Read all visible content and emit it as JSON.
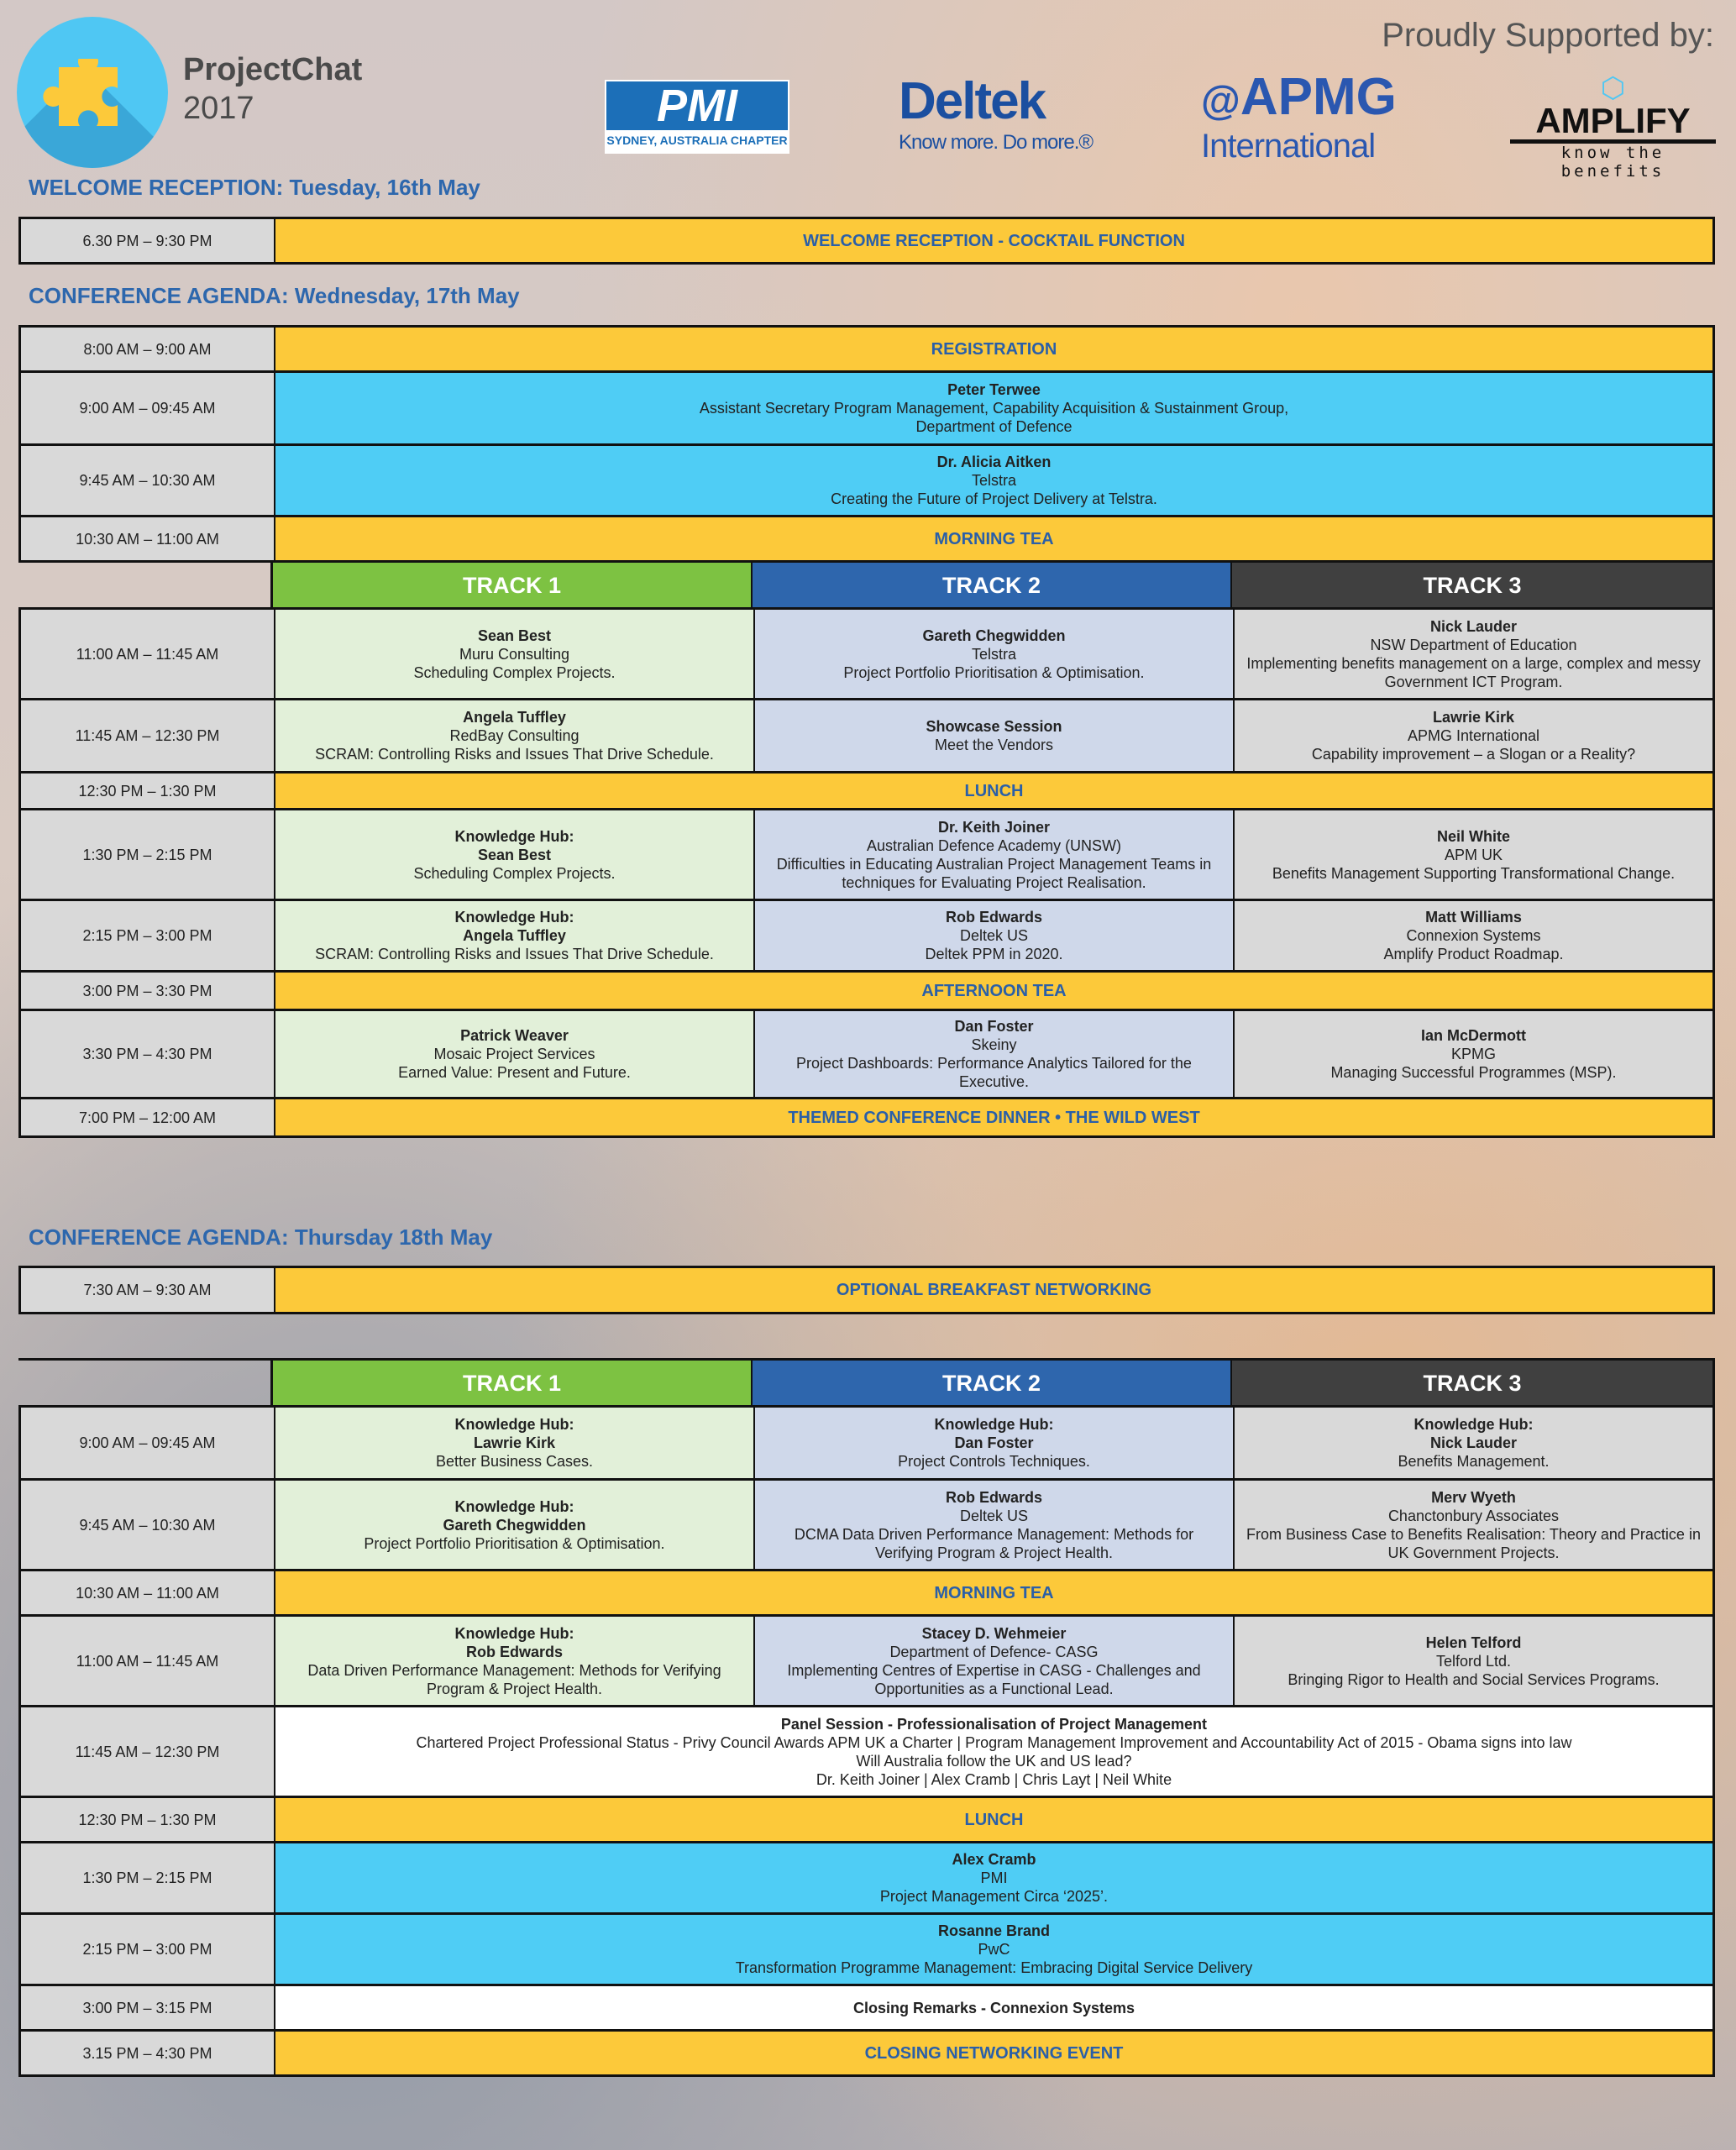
{
  "header": {
    "brand_line1": "ProjectChat",
    "brand_line2": "2017",
    "supported_by": "Proudly Supported by:",
    "sponsors": {
      "pmi": "PMI",
      "pmi_sub": "SYDNEY, AUSTRALIA CHAPTER",
      "deltek": "Deltek",
      "deltek_tag": "Know more. Do more.®",
      "apmg": "APMG",
      "apmg_sub": "International",
      "amplify": "AMPLIFY",
      "amplify_tag": "know the benefits"
    }
  },
  "colors": {
    "yellow": "#fcc93a",
    "cyan": "#4fcdf5",
    "white": "#ffffff",
    "heading_blue": "#2d67ad",
    "track1": "#7dc242",
    "track2": "#2e66ad",
    "track3": "#404040"
  },
  "sections": [
    {
      "title": "WELCOME RECEPTION: Tuesday, 16th May",
      "tables": [
        {
          "rows": [
            {
              "time": "6.30 PM – 9:30 PM",
              "type": "span",
              "color": "yellow",
              "lines": [
                "WELCOME RECEPTION -  COCKTAIL FUNCTION"
              ]
            }
          ]
        }
      ]
    },
    {
      "title": "CONFERENCE AGENDA: Wednesday, 17th May",
      "tables": [
        {
          "rows": [
            {
              "time": "8:00 AM – 9:00 AM",
              "type": "span",
              "color": "yellow",
              "lines": [
                "REGISTRATION"
              ]
            },
            {
              "time": "9:00 AM – 09:45 AM",
              "type": "span",
              "color": "cyan",
              "bold": [
                "Peter Terwee"
              ],
              "lines": [
                "Assistant Secretary Program Management, Capability Acquisition & Sustainment Group,",
                "Department of Defence"
              ]
            },
            {
              "time": "9:45 AM – 10:30 AM",
              "type": "span",
              "color": "cyan",
              "bold": [
                "Dr. Alicia Aitken"
              ],
              "lines": [
                "Telstra",
                "Creating the Future of Project Delivery at Telstra."
              ]
            },
            {
              "time": "10:30 AM – 11:00 AM",
              "type": "span",
              "color": "yellow",
              "lines": [
                "MORNING TEA"
              ]
            },
            {
              "time": "",
              "type": "header",
              "tracks": [
                "TRACK 1",
                "TRACK 2",
                "TRACK 3"
              ]
            },
            {
              "time": "11:00 AM – 11:45 AM",
              "type": "tracks",
              "cells": [
                {
                  "bold": [
                    "Sean Best"
                  ],
                  "lines": [
                    "Muru Consulting",
                    "Scheduling Complex Projects."
                  ]
                },
                {
                  "bold": [
                    "Gareth Chegwidden"
                  ],
                  "lines": [
                    "Telstra",
                    "Project Portfolio Prioritisation & Optimisation."
                  ]
                },
                {
                  "bold": [
                    "Nick Lauder"
                  ],
                  "lines": [
                    "NSW Department of Education",
                    "Implementing benefits management on a large, complex and messy Government ICT Program."
                  ]
                }
              ]
            },
            {
              "time": "11:45 AM – 12:30 PM",
              "type": "tracks",
              "cells": [
                {
                  "bold": [
                    "Angela Tuffley"
                  ],
                  "lines": [
                    "RedBay Consulting",
                    "SCRAM: Controlling Risks and Issues That Drive Schedule."
                  ]
                },
                {
                  "bold": [
                    "Showcase Session"
                  ],
                  "lines": [
                    "Meet the Vendors"
                  ]
                },
                {
                  "bold": [
                    "Lawrie Kirk"
                  ],
                  "lines": [
                    "APMG International",
                    "Capability improvement – a Slogan or a Reality?"
                  ]
                }
              ]
            },
            {
              "time": "12:30 PM – 1:30 PM",
              "type": "span",
              "color": "yellow",
              "lines": [
                "LUNCH"
              ]
            },
            {
              "time": "1:30 PM – 2:15 PM",
              "type": "tracks",
              "cells": [
                {
                  "bold": [
                    "Knowledge Hub:",
                    "Sean Best"
                  ],
                  "lines": [
                    "Scheduling Complex Projects."
                  ]
                },
                {
                  "bold": [
                    "Dr. Keith Joiner"
                  ],
                  "lines": [
                    "Australian Defence Academy (UNSW)",
                    "Difficulties in Educating Australian Project Management Teams in techniques for Evaluating Project Realisation."
                  ]
                },
                {
                  "bold": [
                    "Neil White"
                  ],
                  "lines": [
                    "APM UK",
                    "Benefits Management Supporting Transformational Change."
                  ]
                }
              ]
            },
            {
              "time": "2:15 PM – 3:00 PM",
              "type": "tracks",
              "cells": [
                {
                  "bold": [
                    "Knowledge Hub:",
                    "Angela Tuffley"
                  ],
                  "lines": [
                    "SCRAM: Controlling Risks and Issues That Drive Schedule."
                  ]
                },
                {
                  "bold": [
                    "Rob Edwards"
                  ],
                  "lines": [
                    "Deltek US",
                    "Deltek PPM in 2020."
                  ]
                },
                {
                  "bold": [
                    "Matt Williams"
                  ],
                  "lines": [
                    "Connexion Systems",
                    "Amplify Product Roadmap."
                  ]
                }
              ]
            },
            {
              "time": "3:00 PM – 3:30 PM",
              "type": "span",
              "color": "yellow",
              "lines": [
                "AFTERNOON TEA"
              ]
            },
            {
              "time": "3:30 PM – 4:30 PM",
              "type": "tracks",
              "cells": [
                {
                  "bold": [
                    "Patrick Weaver"
                  ],
                  "lines": [
                    "Mosaic Project Services",
                    "Earned Value:  Present and Future."
                  ]
                },
                {
                  "bold": [
                    "Dan Foster"
                  ],
                  "lines": [
                    "Skeiny",
                    "Project Dashboards: Performance Analytics Tailored for the Executive."
                  ]
                },
                {
                  "bold": [
                    "Ian McDermott"
                  ],
                  "lines": [
                    "KPMG",
                    "Managing Successful Programmes (MSP)."
                  ]
                }
              ]
            },
            {
              "time": "7:00 PM – 12:00 AM",
              "type": "span",
              "color": "yellow",
              "lines": [
                "THEMED CONFERENCE DINNER • THE WILD WEST"
              ]
            }
          ]
        }
      ]
    },
    {
      "title": "CONFERENCE AGENDA: Thursday 18th May",
      "tables": [
        {
          "rows": [
            {
              "time": "7:30 AM – 9:30 AM",
              "type": "span",
              "color": "yellow",
              "lines": [
                "OPTIONAL BREAKFAST NETWORKING"
              ]
            }
          ]
        },
        {
          "rows": [
            {
              "time": "",
              "type": "header",
              "tracks": [
                "TRACK 1",
                "TRACK 2",
                "TRACK 3"
              ]
            },
            {
              "time": "9:00 AM – 09:45 AM",
              "type": "tracks",
              "cells": [
                {
                  "bold": [
                    "Knowledge Hub:",
                    "Lawrie Kirk"
                  ],
                  "lines": [
                    "Better Business Cases."
                  ]
                },
                {
                  "bold": [
                    "Knowledge Hub:",
                    "Dan Foster"
                  ],
                  "lines": [
                    "Project Controls Techniques."
                  ]
                },
                {
                  "bold": [
                    "Knowledge Hub:",
                    "Nick Lauder"
                  ],
                  "lines": [
                    "Benefits Management."
                  ]
                }
              ]
            },
            {
              "time": "9:45 AM – 10:30 AM",
              "type": "tracks",
              "cells": [
                {
                  "bold": [
                    "Knowledge Hub:",
                    "Gareth Chegwidden"
                  ],
                  "lines": [
                    "Project Portfolio Prioritisation & Optimisation."
                  ]
                },
                {
                  "bold": [
                    "Rob Edwards"
                  ],
                  "lines": [
                    "Deltek US",
                    "DCMA Data Driven Performance Management: Methods for Verifying Program & Project Health."
                  ]
                },
                {
                  "bold": [
                    "Merv Wyeth"
                  ],
                  "lines": [
                    "Chanctonbury Associates",
                    "From Business Case to Benefits Realisation: Theory and Practice in UK Government Projects."
                  ]
                }
              ]
            },
            {
              "time": "10:30 AM – 11:00 AM",
              "type": "span",
              "color": "yellow",
              "lines": [
                "MORNING TEA"
              ]
            },
            {
              "time": "11:00 AM – 11:45 AM",
              "type": "tracks",
              "cells": [
                {
                  "bold": [
                    "Knowledge Hub:",
                    "Rob Edwards"
                  ],
                  "lines": [
                    "Data Driven Performance Management: Methods for Verifying Program & Project Health."
                  ]
                },
                {
                  "bold": [
                    "Stacey D. Wehmeier"
                  ],
                  "lines": [
                    "Department of Defence- CASG",
                    "Implementing Centres of Expertise in CASG - Challenges and Opportunities as a Functional Lead."
                  ]
                },
                {
                  "bold": [
                    "Helen Telford"
                  ],
                  "lines": [
                    "Telford Ltd.",
                    "Bringing Rigor to Health and Social Services Programs."
                  ]
                }
              ]
            },
            {
              "time": "11:45 AM – 12:30 PM",
              "type": "span",
              "color": "white",
              "bold": [
                "Panel Session - Professionalisation of Project Management"
              ],
              "lines": [
                "Chartered Project Professional Status - Privy Council Awards APM UK a Charter | Program Management Improvement and Accountability Act of 2015 - Obama signs into law",
                "Will Australia follow the UK and US lead?",
                "Dr. Keith Joiner | Alex Cramb | Chris Layt | Neil White"
              ]
            },
            {
              "time": "12:30 PM – 1:30 PM",
              "type": "span",
              "color": "yellow",
              "lines": [
                "LUNCH"
              ]
            },
            {
              "time": "1:30 PM – 2:15 PM",
              "type": "span",
              "color": "cyan",
              "bold": [
                "Alex Cramb"
              ],
              "lines": [
                "PMI",
                "Project Management Circa ‘2025’."
              ]
            },
            {
              "time": "2:15 PM – 3:00 PM",
              "type": "span",
              "color": "cyan",
              "bold": [
                "Rosanne Brand"
              ],
              "lines": [
                "PwC",
                "Transformation Programme Management: Embracing Digital Service Delivery"
              ]
            },
            {
              "time": "3:00 PM – 3:15 PM",
              "type": "span",
              "color": "white",
              "bold": [
                "Closing Remarks - Connexion Systems"
              ],
              "lines": []
            },
            {
              "time": "3.15 PM – 4:30 PM",
              "type": "span",
              "color": "yellow",
              "lines": [
                "CLOSING NETWORKING EVENT"
              ]
            }
          ]
        }
      ]
    }
  ]
}
